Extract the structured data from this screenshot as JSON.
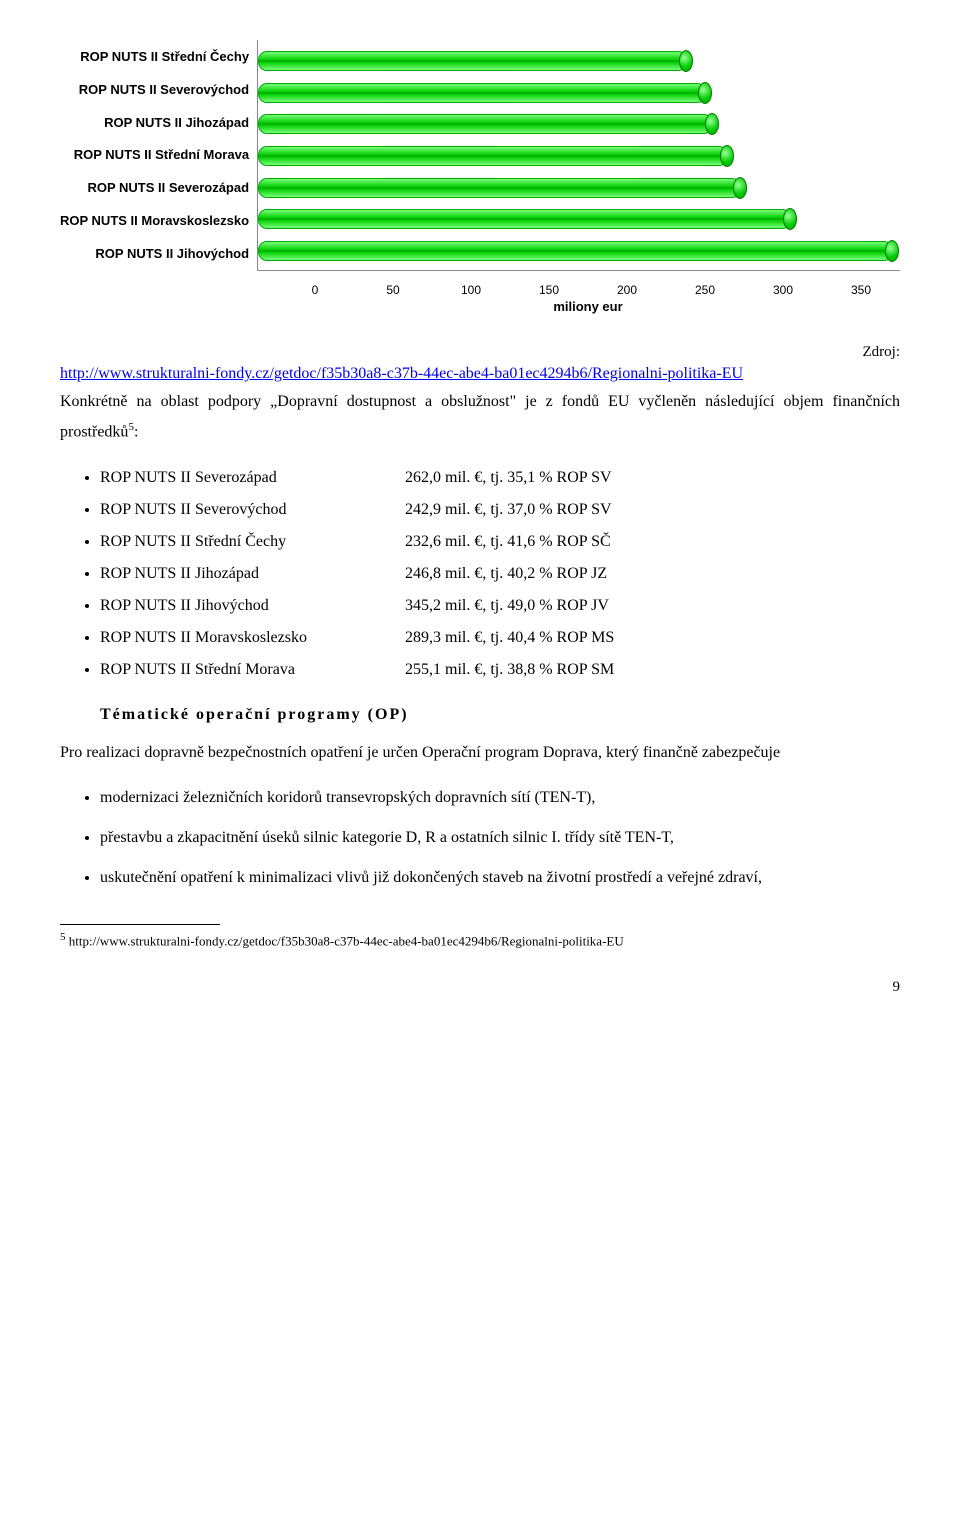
{
  "chart": {
    "type": "bar-horizontal-3d",
    "categories": [
      "ROP NUTS II Střední Čechy",
      "ROP NUTS II Severovýchod",
      "ROP NUTS II Jihozápad",
      "ROP NUTS II Střední Morava",
      "ROP NUTS II Severozápad",
      "ROP NUTS II Moravskoslezsko",
      "ROP NUTS II Jihovýchod"
    ],
    "values": [
      232.6,
      242.9,
      246.8,
      255.1,
      262.0,
      289.3,
      345.2
    ],
    "x_ticks": [
      0,
      50,
      100,
      150,
      200,
      250,
      300,
      350
    ],
    "x_max": 350,
    "x_title": "miliony eur",
    "bar_fill": "#00cc00",
    "bar_edge": "#009900",
    "grid_color": "#888888",
    "background_color": "#ffffff",
    "label_fontsize": 13,
    "label_fontweight": "bold"
  },
  "source": {
    "label": "Zdroj:",
    "url_text": "http://www.strukturalni-fondy.cz/getdoc/f35b30a8-c37b-44ec-abe4-ba01ec4294b6/Regionalni-politika-EU"
  },
  "intro_text": "Konkrétně na oblast podpory „Dopravní dostupnost a obslužnost\" je z fondů EU vyčleněn následující objem finančních prostředků",
  "intro_sup": "5",
  "intro_tail": ":",
  "rop_list": [
    {
      "region": "ROP NUTS II Severozápad",
      "amount": "262,0 mil. €, tj. 35,1 % ROP SV"
    },
    {
      "region": "ROP NUTS II Severovýchod",
      "amount": "242,9 mil. €, tj. 37,0 % ROP SV"
    },
    {
      "region": "ROP NUTS II Střední Čechy",
      "amount": "232,6 mil. €, tj. 41,6 % ROP SČ"
    },
    {
      "region": "ROP NUTS II Jihozápad",
      "amount": "246,8 mil. €, tj. 40,2 % ROP JZ"
    },
    {
      "region": "ROP NUTS II Jihovýchod",
      "amount": "345,2 mil. €, tj. 49,0 % ROP JV"
    },
    {
      "region": "ROP NUTS II Moravskoslezsko",
      "amount": "289,3 mil. €, tj. 40,4 % ROP MS"
    },
    {
      "region": "ROP NUTS II Střední Morava",
      "amount": "255,1 mil. €, tj. 38,8 % ROP SM"
    }
  ],
  "section_heading": "Tématické operační programy (OP)",
  "para2": "Pro realizaci dopravně bezpečnostních opatření je určen Operační program Doprava, který finančně zabezpečuje",
  "bullets2": [
    "modernizaci železničních koridorů transevropských dopravních sítí (TEN-T),",
    "přestavbu a zkapacitnění úseků silnic kategorie D, R a ostatních silnic I. třídy sítě TEN-T,",
    "uskutečnění opatření k minimalizaci vlivů již dokončených staveb na životní prostředí a veřejné zdraví,"
  ],
  "footnote": {
    "mark": "5",
    "text": " http://www.strukturalni-fondy.cz/getdoc/f35b30a8-c37b-44ec-abe4-ba01ec4294b6/Regionalni-politika-EU"
  },
  "page_number": "9"
}
